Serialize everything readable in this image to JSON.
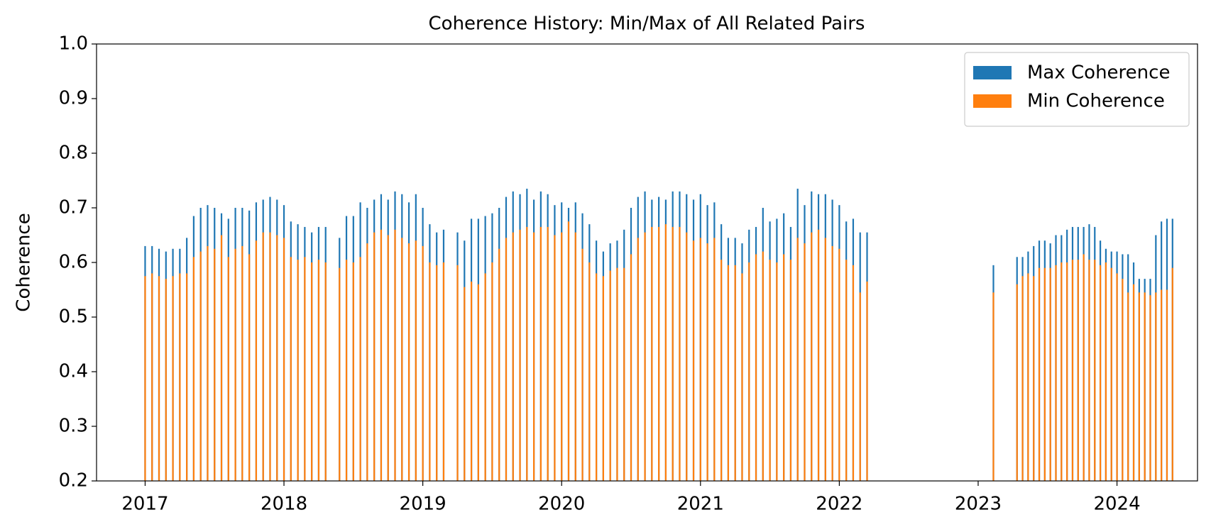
{
  "chart_data": {
    "type": "bar",
    "title": "Coherence History: Min/Max of All Related Pairs",
    "ylabel": "Coherence",
    "x": [
      2017.0,
      2017.05,
      2017.1,
      2017.15,
      2017.2,
      2017.25,
      2017.3,
      2017.35,
      2017.4,
      2017.45,
      2017.5,
      2017.55,
      2017.6,
      2017.65,
      2017.7,
      2017.75,
      2017.8,
      2017.85,
      2017.9,
      2017.95,
      2018.0,
      2018.05,
      2018.1,
      2018.15,
      2018.2,
      2018.25,
      2018.3,
      2018.4,
      2018.45,
      2018.5,
      2018.55,
      2018.6,
      2018.65,
      2018.7,
      2018.75,
      2018.8,
      2018.85,
      2018.9,
      2018.95,
      2019.0,
      2019.05,
      2019.1,
      2019.15,
      2019.25,
      2019.3,
      2019.35,
      2019.4,
      2019.45,
      2019.5,
      2019.55,
      2019.6,
      2019.65,
      2019.7,
      2019.75,
      2019.8,
      2019.85,
      2019.9,
      2019.95,
      2020.0,
      2020.05,
      2020.1,
      2020.15,
      2020.2,
      2020.25,
      2020.3,
      2020.35,
      2020.4,
      2020.45,
      2020.5,
      2020.55,
      2020.6,
      2020.65,
      2020.7,
      2020.75,
      2020.8,
      2020.85,
      2020.9,
      2020.95,
      2021.0,
      2021.05,
      2021.1,
      2021.15,
      2021.2,
      2021.25,
      2021.3,
      2021.35,
      2021.4,
      2021.45,
      2021.5,
      2021.55,
      2021.6,
      2021.65,
      2021.7,
      2021.75,
      2021.8,
      2021.85,
      2021.9,
      2021.95,
      2022.0,
      2022.05,
      2022.1,
      2022.15,
      2022.2,
      2023.11,
      2023.28,
      2023.32,
      2023.36,
      2023.4,
      2023.44,
      2023.48,
      2023.52,
      2023.56,
      2023.6,
      2023.64,
      2023.68,
      2023.72,
      2023.76,
      2023.8,
      2023.84,
      2023.88,
      2023.92,
      2023.96,
      2024.0,
      2024.04,
      2024.08,
      2024.12,
      2024.16,
      2024.2,
      2024.24,
      2024.28,
      2024.32,
      2024.36,
      2024.4
    ],
    "series": [
      {
        "name": "Max Coherence",
        "color": "#1f77b4",
        "values": [
          0.63,
          0.63,
          0.625,
          0.62,
          0.625,
          0.625,
          0.645,
          0.685,
          0.7,
          0.705,
          0.7,
          0.69,
          0.68,
          0.7,
          0.7,
          0.695,
          0.71,
          0.715,
          0.72,
          0.715,
          0.705,
          0.675,
          0.67,
          0.665,
          0.655,
          0.665,
          0.665,
          0.645,
          0.685,
          0.685,
          0.71,
          0.7,
          0.715,
          0.725,
          0.715,
          0.73,
          0.725,
          0.71,
          0.725,
          0.7,
          0.67,
          0.655,
          0.66,
          0.655,
          0.64,
          0.68,
          0.68,
          0.685,
          0.69,
          0.7,
          0.72,
          0.73,
          0.725,
          0.735,
          0.715,
          0.73,
          0.725,
          0.705,
          0.71,
          0.7,
          0.71,
          0.69,
          0.67,
          0.64,
          0.62,
          0.635,
          0.64,
          0.66,
          0.7,
          0.72,
          0.73,
          0.715,
          0.72,
          0.715,
          0.73,
          0.73,
          0.725,
          0.715,
          0.725,
          0.705,
          0.71,
          0.67,
          0.645,
          0.645,
          0.635,
          0.66,
          0.665,
          0.7,
          0.675,
          0.68,
          0.69,
          0.665,
          0.735,
          0.705,
          0.73,
          0.725,
          0.725,
          0.715,
          0.705,
          0.675,
          0.68,
          0.655,
          0.655,
          0.595,
          0.61,
          0.61,
          0.62,
          0.63,
          0.64,
          0.64,
          0.635,
          0.65,
          0.65,
          0.66,
          0.665,
          0.665,
          0.665,
          0.67,
          0.665,
          0.64,
          0.625,
          0.62,
          0.62,
          0.615,
          0.615,
          0.6,
          0.57,
          0.57,
          0.57,
          0.65,
          0.675,
          0.68,
          0.68
        ]
      },
      {
        "name": "Min Coherence",
        "color": "#ff7f0e",
        "values": [
          0.575,
          0.58,
          0.575,
          0.57,
          0.575,
          0.58,
          0.58,
          0.61,
          0.62,
          0.63,
          0.625,
          0.65,
          0.61,
          0.625,
          0.63,
          0.615,
          0.64,
          0.655,
          0.655,
          0.65,
          0.645,
          0.61,
          0.605,
          0.61,
          0.6,
          0.605,
          0.6,
          0.59,
          0.605,
          0.6,
          0.61,
          0.635,
          0.655,
          0.66,
          0.65,
          0.66,
          0.645,
          0.635,
          0.64,
          0.63,
          0.6,
          0.595,
          0.6,
          0.595,
          0.555,
          0.565,
          0.56,
          0.58,
          0.6,
          0.625,
          0.645,
          0.655,
          0.66,
          0.665,
          0.655,
          0.665,
          0.665,
          0.65,
          0.655,
          0.675,
          0.655,
          0.625,
          0.6,
          0.58,
          0.575,
          0.585,
          0.59,
          0.59,
          0.615,
          0.645,
          0.655,
          0.665,
          0.665,
          0.67,
          0.665,
          0.665,
          0.655,
          0.64,
          0.645,
          0.635,
          0.645,
          0.605,
          0.595,
          0.595,
          0.58,
          0.6,
          0.615,
          0.62,
          0.605,
          0.6,
          0.615,
          0.605,
          0.645,
          0.635,
          0.655,
          0.66,
          0.645,
          0.63,
          0.625,
          0.605,
          0.595,
          0.545,
          0.565,
          0.545,
          0.56,
          0.575,
          0.58,
          0.575,
          0.59,
          0.59,
          0.59,
          0.595,
          0.6,
          0.6,
          0.605,
          0.605,
          0.615,
          0.605,
          0.605,
          0.595,
          0.6,
          0.59,
          0.58,
          0.57,
          0.545,
          0.56,
          0.545,
          0.545,
          0.54,
          0.545,
          0.55,
          0.55,
          0.59
        ]
      }
    ],
    "xlim": [
      2016.65,
      2024.58
    ],
    "xticks": [
      2017,
      2018,
      2019,
      2020,
      2021,
      2022,
      2023,
      2024
    ],
    "ylim": [
      0.2,
      1.0
    ],
    "yticks": [
      0.2,
      0.3,
      0.4,
      0.5,
      0.6,
      0.7,
      0.8,
      0.9,
      {
        "value": 1.0,
        "label": "1.0"
      }
    ],
    "legend": "upper right"
  }
}
